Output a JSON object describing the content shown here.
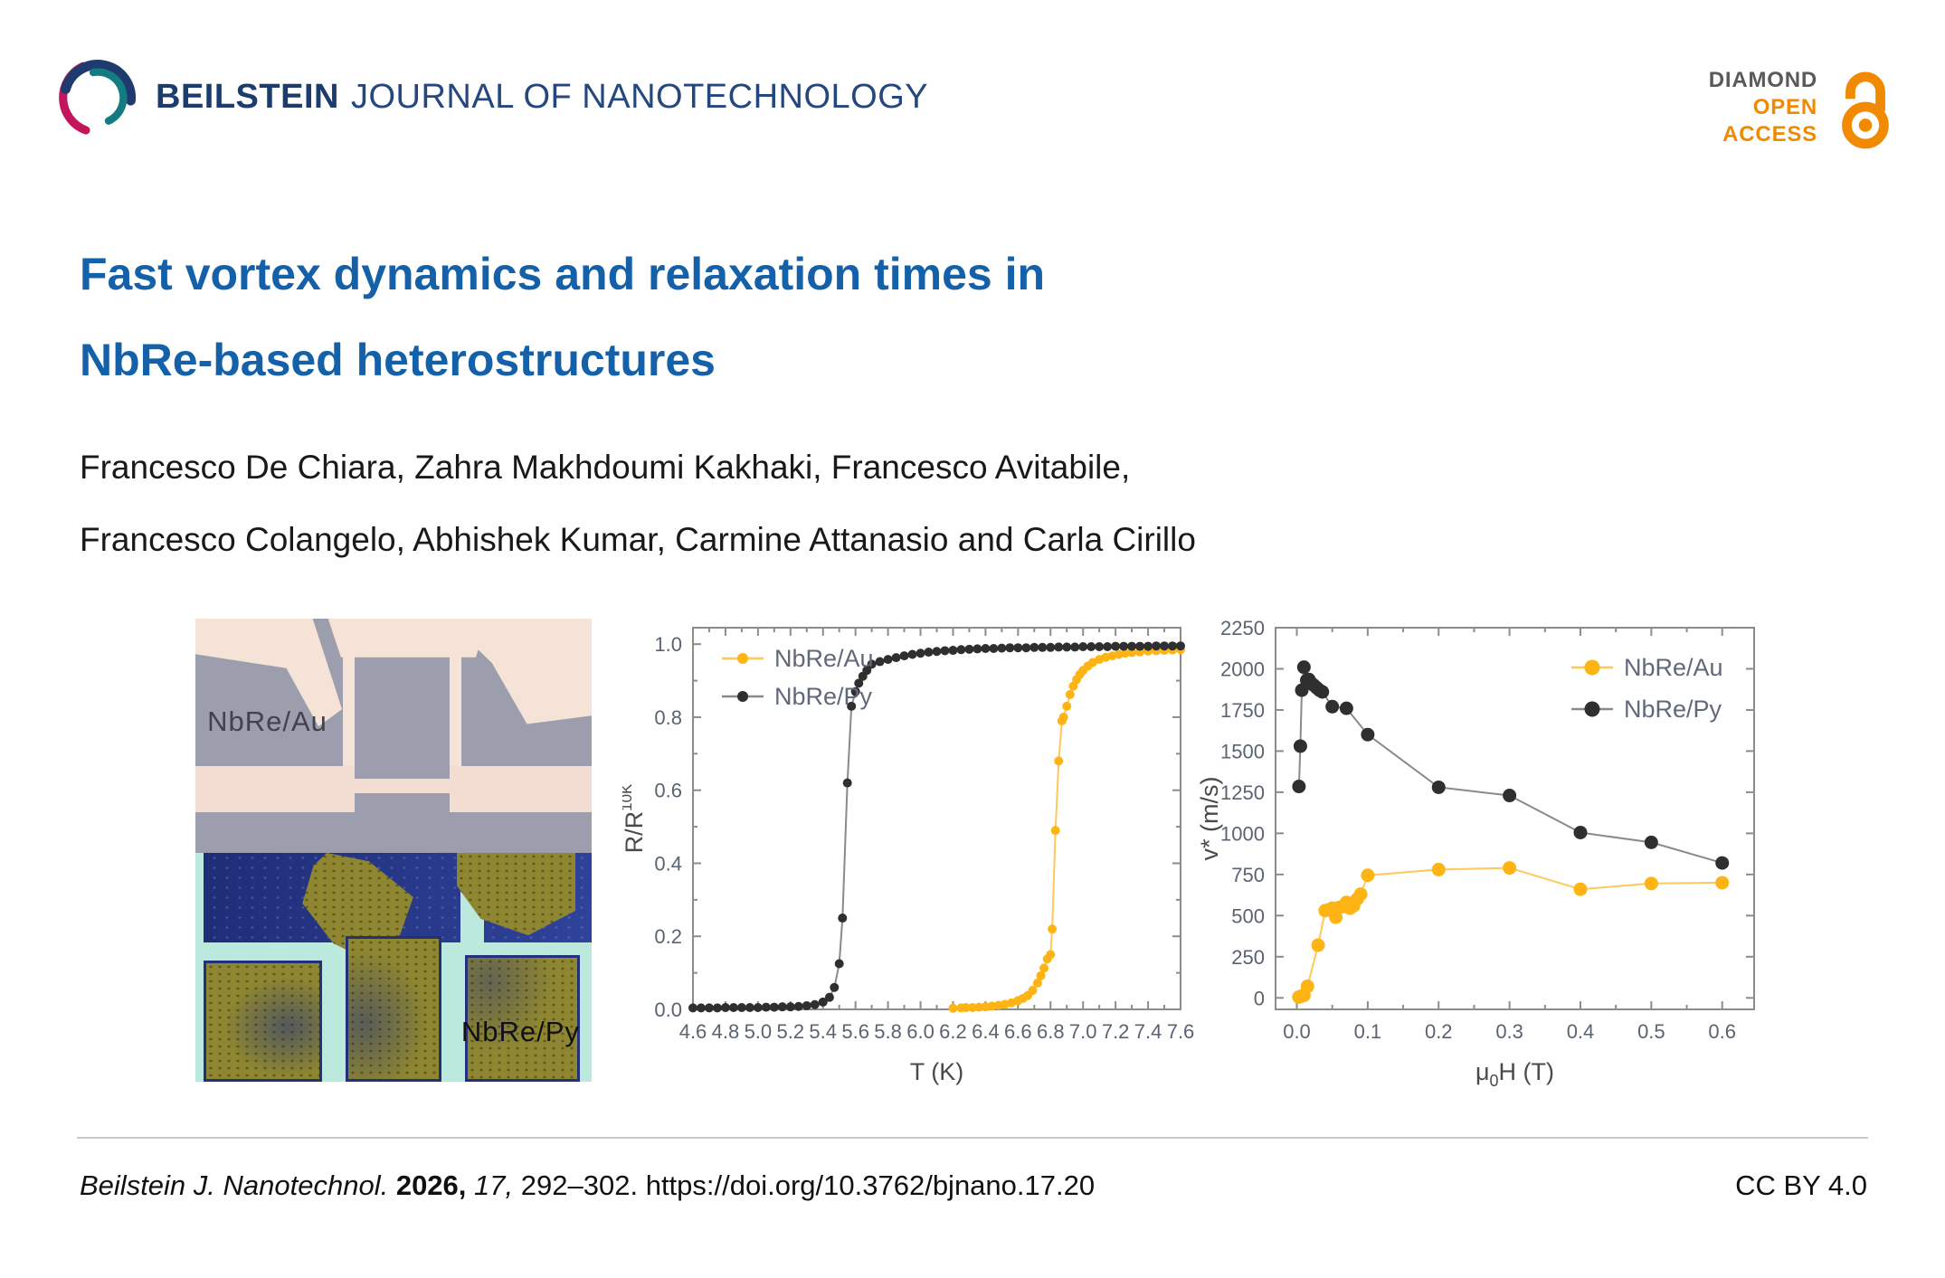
{
  "header": {
    "journal_bold": "BEILSTEIN",
    "journal_rest": "JOURNAL OF NANOTECHNOLOGY",
    "badge": {
      "diamond": "DIAMOND",
      "open": "OPEN",
      "access": "ACCESS"
    }
  },
  "title": {
    "line1": "Fast vortex dynamics and relaxation times in",
    "line2": "NbRe-based heterostructures"
  },
  "authors": {
    "line1": "Francesco De Chiara, Zahra Makhdoumi Kakhaki, Francesco Avitabile,",
    "line2": "Francesco Colangelo, Abhishek Kumar, Carmine Attanasio and Carla Cirillo"
  },
  "micrograph": {
    "label_top": "NbRe/Au",
    "label_bottom": "NbRe/Py"
  },
  "footer": {
    "journal": "Beilstein J. Nanotechnol.",
    "year": "2026,",
    "volume": "17,",
    "pages": "292–302.",
    "doi": "https://doi.org/10.3762/bjnano.17.20",
    "license": "CC BY 4.0"
  },
  "colors": {
    "title_blue": "#1561a9",
    "logo_navy": "#1f3a6e",
    "logo_teal": "#147c80",
    "logo_crimson": "#c2165c",
    "badge_gray": "#58595b",
    "badge_orange": "#f18a00",
    "series_nbre_au": "#FDB414",
    "series_nbre_py": "#2f2f2f"
  },
  "chart_data": [
    {
      "type": "line",
      "title": "",
      "xlabel_parts": [
        {
          "t": "T (K)"
        }
      ],
      "ylabel_parts": [
        {
          "t": "R/R"
        },
        {
          "t": "10K",
          "sup": true
        }
      ],
      "xlim": [
        4.6,
        7.6
      ],
      "ylim": [
        0,
        1.045
      ],
      "xticks": [
        4.6,
        4.8,
        5.0,
        5.2,
        5.4,
        5.6,
        5.8,
        6.0,
        6.2,
        6.4,
        6.6,
        6.8,
        7.0,
        7.2,
        7.4,
        7.6
      ],
      "yticks": [
        0.0,
        0.2,
        0.4,
        0.6,
        0.8,
        1.0
      ],
      "xtick_decimals": 1,
      "ytick_decimals": 1,
      "x_minor": true,
      "y_minor": true,
      "grid": false,
      "legend": {
        "pos": "tl",
        "dy": 42
      },
      "marker_size": 5,
      "plot": [
        78,
        18,
        617,
        440
      ],
      "ylabel_x": 22,
      "series": [
        {
          "name": "NbRe/Au",
          "marker_color": "#FDB414",
          "line_color": "#FFC85A",
          "points": [
            [
              6.2,
              0.003
            ],
            [
              6.25,
              0.004
            ],
            [
              6.28,
              0.005
            ],
            [
              6.32,
              0.005
            ],
            [
              6.36,
              0.006
            ],
            [
              6.4,
              0.007
            ],
            [
              6.44,
              0.009
            ],
            [
              6.48,
              0.011
            ],
            [
              6.52,
              0.014
            ],
            [
              6.56,
              0.018
            ],
            [
              6.6,
              0.024
            ],
            [
              6.63,
              0.03
            ],
            [
              6.66,
              0.038
            ],
            [
              6.69,
              0.052
            ],
            [
              6.72,
              0.072
            ],
            [
              6.74,
              0.092
            ],
            [
              6.76,
              0.113
            ],
            [
              6.78,
              0.138
            ],
            [
              6.8,
              0.15
            ],
            [
              6.81,
              0.22
            ],
            [
              6.83,
              0.49
            ],
            [
              6.85,
              0.68
            ],
            [
              6.87,
              0.79
            ],
            [
              6.88,
              0.8
            ],
            [
              6.9,
              0.83
            ],
            [
              6.92,
              0.862
            ],
            [
              6.94,
              0.885
            ],
            [
              6.96,
              0.903
            ],
            [
              6.98,
              0.917
            ],
            [
              7.0,
              0.928
            ],
            [
              7.03,
              0.94
            ],
            [
              7.06,
              0.95
            ],
            [
              7.1,
              0.958
            ],
            [
              7.14,
              0.964
            ],
            [
              7.18,
              0.968
            ],
            [
              7.22,
              0.972
            ],
            [
              7.26,
              0.975
            ],
            [
              7.3,
              0.977
            ],
            [
              7.35,
              0.979
            ],
            [
              7.4,
              0.981
            ],
            [
              7.45,
              0.982
            ],
            [
              7.5,
              0.983
            ],
            [
              7.55,
              0.984
            ],
            [
              7.6,
              0.985
            ]
          ]
        },
        {
          "name": "NbRe/Py",
          "marker_color": "#2f2f2f",
          "line_color": "#8a8a8a",
          "points": [
            [
              4.6,
              0.004
            ],
            [
              4.65,
              0.004
            ],
            [
              4.7,
              0.004
            ],
            [
              4.75,
              0.004
            ],
            [
              4.8,
              0.005
            ],
            [
              4.85,
              0.005
            ],
            [
              4.9,
              0.005
            ],
            [
              4.95,
              0.005
            ],
            [
              5.0,
              0.005
            ],
            [
              5.05,
              0.006
            ],
            [
              5.1,
              0.006
            ],
            [
              5.15,
              0.007
            ],
            [
              5.2,
              0.007
            ],
            [
              5.25,
              0.008
            ],
            [
              5.3,
              0.01
            ],
            [
              5.35,
              0.013
            ],
            [
              5.4,
              0.02
            ],
            [
              5.44,
              0.033
            ],
            [
              5.47,
              0.06
            ],
            [
              5.5,
              0.125
            ],
            [
              5.52,
              0.25
            ],
            [
              5.55,
              0.62
            ],
            [
              5.575,
              0.83
            ],
            [
              5.6,
              0.87
            ],
            [
              5.62,
              0.893
            ],
            [
              5.645,
              0.912
            ],
            [
              5.67,
              0.928
            ],
            [
              5.7,
              0.945
            ],
            [
              5.75,
              0.952
            ],
            [
              5.8,
              0.958
            ],
            [
              5.85,
              0.963
            ],
            [
              5.9,
              0.968
            ],
            [
              5.95,
              0.972
            ],
            [
              6.0,
              0.975
            ],
            [
              6.05,
              0.978
            ],
            [
              6.1,
              0.98
            ],
            [
              6.15,
              0.982
            ],
            [
              6.2,
              0.983
            ],
            [
              6.25,
              0.985
            ],
            [
              6.3,
              0.986
            ],
            [
              6.35,
              0.987
            ],
            [
              6.4,
              0.988
            ],
            [
              6.45,
              0.988
            ],
            [
              6.5,
              0.989
            ],
            [
              6.55,
              0.99
            ],
            [
              6.6,
              0.99
            ],
            [
              6.65,
              0.99
            ],
            [
              6.7,
              0.991
            ],
            [
              6.75,
              0.991
            ],
            [
              6.8,
              0.991
            ],
            [
              6.85,
              0.992
            ],
            [
              6.9,
              0.992
            ],
            [
              6.95,
              0.992
            ],
            [
              7.0,
              0.993
            ],
            [
              7.05,
              0.993
            ],
            [
              7.1,
              0.993
            ],
            [
              7.15,
              0.993
            ],
            [
              7.2,
              0.994
            ],
            [
              7.25,
              0.994
            ],
            [
              7.3,
              0.994
            ],
            [
              7.35,
              0.994
            ],
            [
              7.4,
              0.994
            ],
            [
              7.45,
              0.995
            ],
            [
              7.5,
              0.995
            ],
            [
              7.55,
              0.995
            ],
            [
              7.6,
              0.995
            ]
          ]
        }
      ]
    },
    {
      "type": "line",
      "title": "",
      "xlabel_parts": [
        {
          "t": "μ"
        },
        {
          "t": "0",
          "sub": true
        },
        {
          "t": "H (T)"
        }
      ],
      "ylabel_parts": [
        {
          "t": "v* (m/s)"
        }
      ],
      "xlim": [
        -0.03,
        0.645
      ],
      "ylim": [
        -70,
        2250
      ],
      "xticks": [
        0.0,
        0.1,
        0.2,
        0.3,
        0.4,
        0.5,
        0.6
      ],
      "yticks": [
        0,
        250,
        500,
        750,
        1000,
        1250,
        1500,
        1750,
        2000,
        2250
      ],
      "xtick_decimals": 1,
      "ytick_decimals": 0,
      "x_minor": true,
      "y_minor": false,
      "grid": false,
      "legend": {
        "pos": "tr",
        "dy": 46
      },
      "marker_size": 7.5,
      "plot": [
        88,
        18,
        617,
        440
      ],
      "ylabel_x": 24,
      "series": [
        {
          "name": "NbRe/Au",
          "marker_color": "#FDB414",
          "line_color": "#FFC85A",
          "points": [
            [
              0.003,
              5
            ],
            [
              0.006,
              10
            ],
            [
              0.01,
              15
            ],
            [
              0.015,
              70
            ],
            [
              0.03,
              320
            ],
            [
              0.04,
              530
            ],
            [
              0.045,
              535
            ],
            [
              0.05,
              545
            ],
            [
              0.055,
              490
            ],
            [
              0.06,
              550
            ],
            [
              0.065,
              555
            ],
            [
              0.07,
              580
            ],
            [
              0.075,
              545
            ],
            [
              0.08,
              560
            ],
            [
              0.085,
              600
            ],
            [
              0.09,
              630
            ],
            [
              0.1,
              745
            ],
            [
              0.2,
              780
            ],
            [
              0.3,
              790
            ],
            [
              0.4,
              660
            ],
            [
              0.5,
              695
            ],
            [
              0.6,
              700
            ]
          ]
        },
        {
          "name": "NbRe/Py",
          "marker_color": "#2f2f2f",
          "line_color": "#8a8a8a",
          "points": [
            [
              0.003,
              1285
            ],
            [
              0.005,
              1530
            ],
            [
              0.007,
              1870
            ],
            [
              0.01,
              2010
            ],
            [
              0.014,
              1930
            ],
            [
              0.017,
              1935
            ],
            [
              0.02,
              1915
            ],
            [
              0.024,
              1900
            ],
            [
              0.028,
              1885
            ],
            [
              0.032,
              1870
            ],
            [
              0.036,
              1860
            ],
            [
              0.05,
              1770
            ],
            [
              0.07,
              1760
            ],
            [
              0.1,
              1600
            ],
            [
              0.2,
              1280
            ],
            [
              0.3,
              1230
            ],
            [
              0.4,
              1005
            ],
            [
              0.5,
              945
            ],
            [
              0.6,
              820
            ]
          ]
        }
      ]
    }
  ]
}
